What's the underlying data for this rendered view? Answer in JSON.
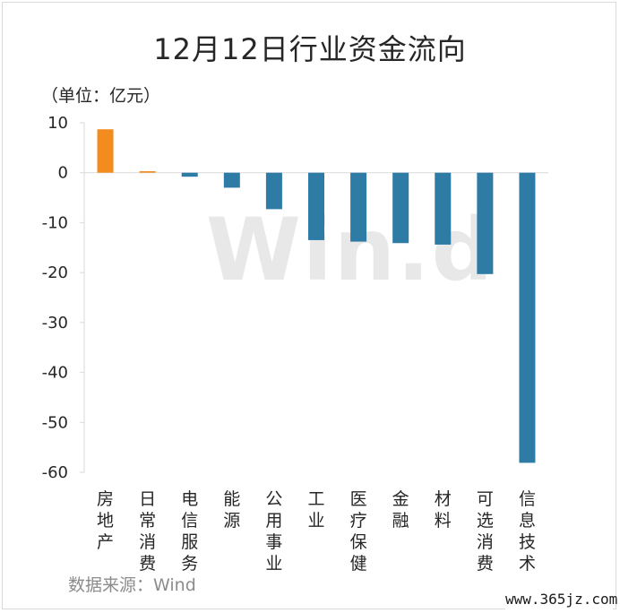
{
  "title": "12月12日行业资金流向",
  "unit_label": "（单位：亿元）",
  "source": "数据来源：Wind",
  "watermark": "Win.d",
  "site_credit": "www.365jz.com",
  "colors": {
    "positive": "#f28c1e",
    "negative": "#2e7ba6",
    "axis": "#d9d9d9"
  },
  "chart_data": {
    "type": "bar",
    "title": "12月12日行业资金流向",
    "ylabel": "（单位：亿元）",
    "ylim": [
      -60,
      10
    ],
    "yticks": [
      10,
      0,
      -10,
      -20,
      -30,
      -40,
      -50,
      -60
    ],
    "grid": false,
    "categories": [
      "房地产",
      "日常消费",
      "电信服务",
      "能源",
      "公用事业",
      "工业",
      "医疗保健",
      "金融",
      "材料",
      "可选消费",
      "信息技术"
    ],
    "values": [
      8.7,
      0.3,
      -0.8,
      -3.0,
      -7.3,
      -13.5,
      -13.8,
      -14.1,
      -14.4,
      -20.3,
      -58.1
    ]
  }
}
